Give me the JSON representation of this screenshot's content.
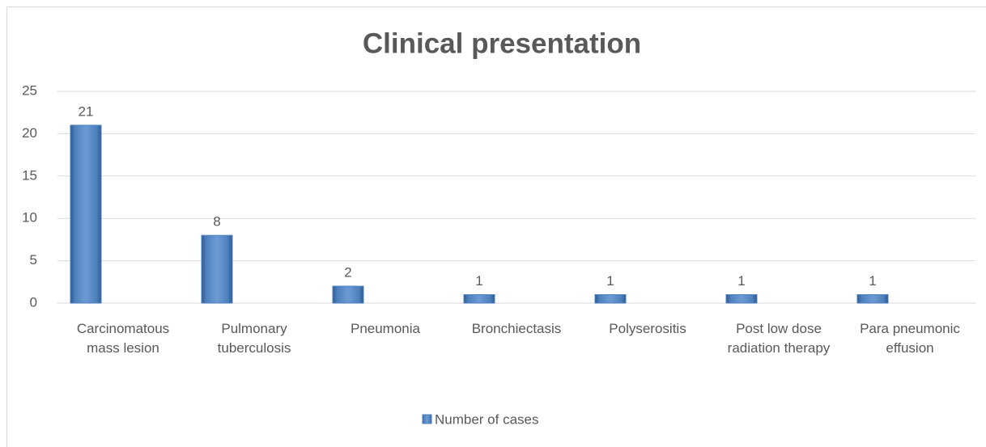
{
  "chart_data": {
    "type": "bar",
    "title": "Clinical presentation",
    "categories": [
      "Carcinomatous mass lesion",
      "Pulmonary tuberculosis",
      "Pneumonia",
      "Bronchiectasis",
      "Polyserositis",
      "Post low dose radiation therapy",
      "Para pneumonic effusion"
    ],
    "series": [
      {
        "name": "Number of cases",
        "color": "#4f81bd",
        "values": [
          21,
          8,
          2,
          1,
          1,
          1,
          1
        ]
      }
    ],
    "ylim": [
      0,
      25
    ],
    "yticks": [
      0,
      5,
      10,
      15,
      20,
      25
    ],
    "grid": true,
    "data_labels": true,
    "legend": "bottom"
  }
}
